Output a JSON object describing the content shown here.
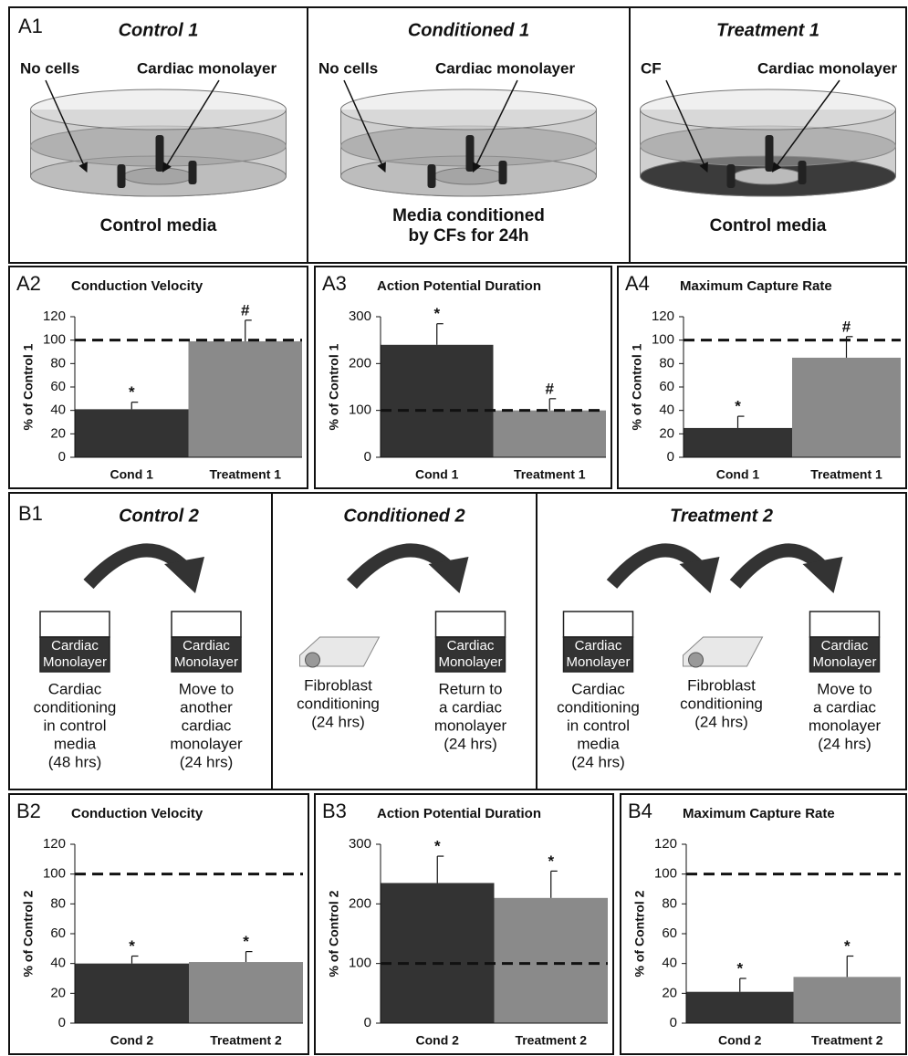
{
  "figure_a1": {
    "label": "A1",
    "panels": [
      {
        "title": "Control 1",
        "left_label": "No cells",
        "right_label": "Cardiac monolayer",
        "caption": [
          "Control media"
        ],
        "cells": false
      },
      {
        "title": "Conditioned 1",
        "left_label": "No cells",
        "right_label": "Cardiac monolayer",
        "caption": [
          "Media conditioned",
          "by CFs for 24h"
        ],
        "cells": false
      },
      {
        "title": "Treatment 1",
        "left_label": "CF",
        "right_label": "Cardiac monolayer",
        "caption": [
          "Control media"
        ],
        "cells": true
      }
    ]
  },
  "figure_b1": {
    "label": "B1",
    "panels": [
      {
        "title": "Control 2",
        "steps": [
          {
            "box": [
              "Cardiac",
              "Monolayer"
            ],
            "text": [
              "Cardiac",
              "conditioning",
              "in control",
              "media",
              "(48 hrs)"
            ]
          },
          {
            "box": [
              "Cardiac",
              "Monolayer"
            ],
            "text": [
              "Move to",
              "another",
              "cardiac",
              "monolayer",
              "(24 hrs)"
            ]
          }
        ]
      },
      {
        "title": "Conditioned 2",
        "steps": [
          {
            "device": true,
            "text": [
              "Fibroblast",
              "conditioning",
              "(24 hrs)"
            ]
          },
          {
            "box": [
              "Cardiac",
              "Monolayer"
            ],
            "text": [
              "Return to",
              "a cardiac",
              "monolayer",
              "(24 hrs)"
            ]
          }
        ]
      },
      {
        "title": "Treatment 2",
        "steps": [
          {
            "box": [
              "Cardiac",
              "Monolayer"
            ],
            "text": [
              "Cardiac",
              "conditioning",
              "in control",
              "media",
              "(24 hrs)"
            ]
          },
          {
            "device": true,
            "text": [
              "Fibroblast",
              "conditioning",
              "(24 hrs)"
            ]
          },
          {
            "box": [
              "Cardiac",
              "Monolayer"
            ],
            "text": [
              "Move to",
              "a cardiac",
              "monolayer",
              "(24 hrs)"
            ]
          }
        ]
      }
    ]
  },
  "chart_data": [
    {
      "type": "bar",
      "panel_label": "A2",
      "title": "Conduction Velocity",
      "y_label": "% of Control 1",
      "categories": [
        "Cond 1",
        "Treatment 1"
      ],
      "values": [
        41,
        99
      ],
      "errors": [
        6,
        18
      ],
      "annotations": [
        "*",
        "#"
      ],
      "colors": [
        "#333333",
        "#8a8a8a"
      ],
      "reference_line": 100,
      "ylim": [
        0,
        120
      ],
      "yticks": [
        0,
        20,
        40,
        60,
        80,
        100,
        120
      ]
    },
    {
      "type": "bar",
      "panel_label": "A3",
      "title": "Action Potential Duration",
      "y_label": "% of Control 1",
      "categories": [
        "Cond 1",
        "Treatment 1"
      ],
      "values": [
        240,
        100
      ],
      "errors": [
        45,
        25
      ],
      "annotations": [
        "*",
        "#"
      ],
      "colors": [
        "#333333",
        "#8a8a8a"
      ],
      "reference_line": 100,
      "ylim": [
        0,
        300
      ],
      "yticks": [
        0,
        100,
        200,
        300
      ]
    },
    {
      "type": "bar",
      "panel_label": "A4",
      "title": "Maximum Capture Rate",
      "y_label": "% of Control 1",
      "categories": [
        "Cond 1",
        "Treatment 1"
      ],
      "values": [
        25,
        85
      ],
      "errors": [
        10,
        18
      ],
      "annotations": [
        "*",
        "#"
      ],
      "colors": [
        "#333333",
        "#8a8a8a"
      ],
      "reference_line": 100,
      "ylim": [
        0,
        120
      ],
      "yticks": [
        0,
        20,
        40,
        60,
        80,
        100,
        120
      ]
    },
    {
      "type": "bar",
      "panel_label": "B2",
      "title": "Conduction Velocity",
      "y_label": "% of Control 2",
      "categories": [
        "Cond 2",
        "Treatment 2"
      ],
      "values": [
        40,
        41
      ],
      "errors": [
        5,
        7
      ],
      "annotations": [
        "*",
        "*"
      ],
      "colors": [
        "#333333",
        "#8a8a8a"
      ],
      "reference_line": 100,
      "ylim": [
        0,
        120
      ],
      "yticks": [
        0,
        20,
        40,
        60,
        80,
        100,
        120
      ]
    },
    {
      "type": "bar",
      "panel_label": "B3",
      "title": "Action Potential Duration",
      "y_label": "% of Control 2",
      "categories": [
        "Cond 2",
        "Treatment 2"
      ],
      "values": [
        235,
        210
      ],
      "errors": [
        45,
        45
      ],
      "annotations": [
        "*",
        "*"
      ],
      "colors": [
        "#333333",
        "#8a8a8a"
      ],
      "reference_line": 100,
      "ylim": [
        0,
        300
      ],
      "yticks": [
        0,
        100,
        200,
        300
      ]
    },
    {
      "type": "bar",
      "panel_label": "B4",
      "title": "Maximum Capture Rate",
      "y_label": "% of Control 2",
      "categories": [
        "Cond 2",
        "Treatment 2"
      ],
      "values": [
        21,
        31
      ],
      "errors": [
        9,
        14
      ],
      "annotations": [
        "*",
        "*"
      ],
      "colors": [
        "#333333",
        "#8a8a8a"
      ],
      "reference_line": 100,
      "ylim": [
        0,
        120
      ],
      "yticks": [
        0,
        20,
        40,
        60,
        80,
        100,
        120
      ]
    }
  ]
}
